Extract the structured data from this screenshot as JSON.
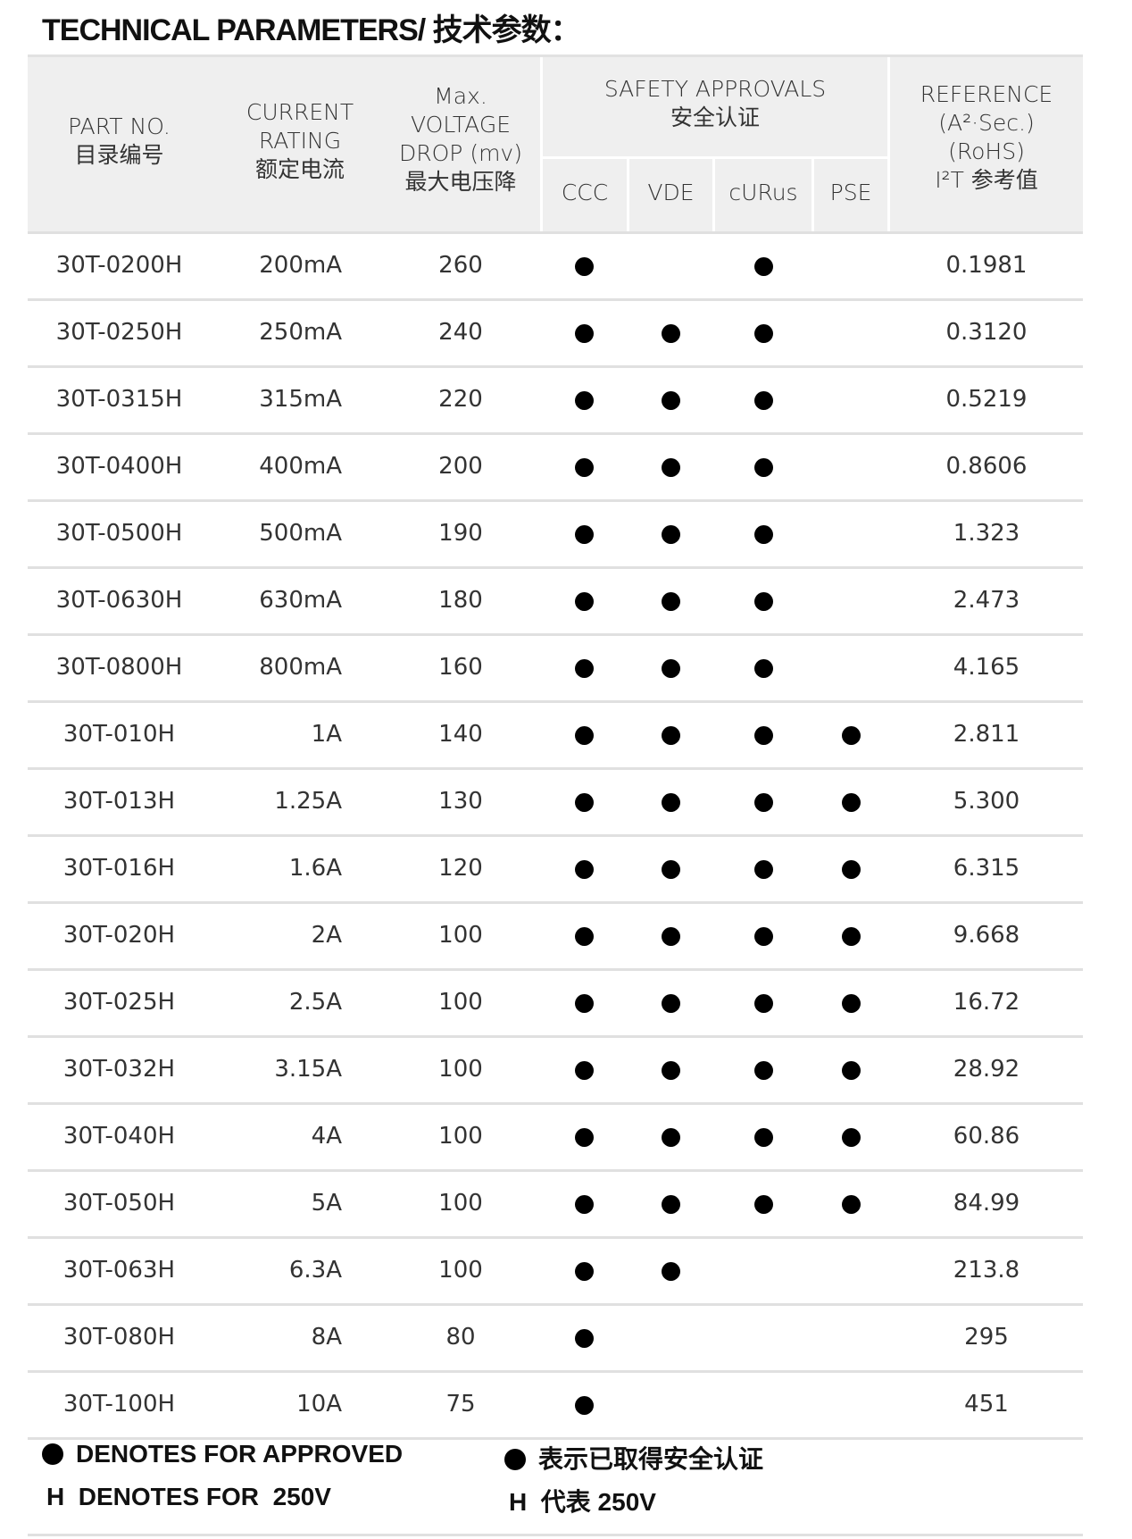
{
  "title": "TECHNICAL PARAMETERS/ 技术参数：",
  "header": {
    "part_no": [
      "PART  NO.",
      "目录编号"
    ],
    "current_rating": [
      "CURRENT",
      "RATING",
      "额定电流"
    ],
    "voltage_drop": [
      "Max.",
      "VOLTAGE",
      "DROP (mv)",
      "最大电压降"
    ],
    "safety_approvals": [
      "SAFETY APPROVALS",
      "安全认证"
    ],
    "approvals": [
      "CCC",
      "VDE",
      "cURus",
      "PSE"
    ],
    "reference": [
      "REFERENCE",
      "(A²·Sec.)",
      "(RoHS)",
      "I²T 参考值"
    ]
  },
  "rows": [
    {
      "part": "30T-0200H",
      "current": "200mA",
      "drop": "260",
      "ccc": true,
      "vde": false,
      "curus": true,
      "pse": false,
      "ref": "0.1981"
    },
    {
      "part": "30T-0250H",
      "current": "250mA",
      "drop": "240",
      "ccc": true,
      "vde": true,
      "curus": true,
      "pse": false,
      "ref": "0.3120"
    },
    {
      "part": "30T-0315H",
      "current": "315mA",
      "drop": "220",
      "ccc": true,
      "vde": true,
      "curus": true,
      "pse": false,
      "ref": "0.5219"
    },
    {
      "part": "30T-0400H",
      "current": "400mA",
      "drop": "200",
      "ccc": true,
      "vde": true,
      "curus": true,
      "pse": false,
      "ref": "0.8606"
    },
    {
      "part": "30T-0500H",
      "current": "500mA",
      "drop": "190",
      "ccc": true,
      "vde": true,
      "curus": true,
      "pse": false,
      "ref": "1.323"
    },
    {
      "part": "30T-0630H",
      "current": "630mA",
      "drop": "180",
      "ccc": true,
      "vde": true,
      "curus": true,
      "pse": false,
      "ref": "2.473"
    },
    {
      "part": "30T-0800H",
      "current": "800mA",
      "drop": "160",
      "ccc": true,
      "vde": true,
      "curus": true,
      "pse": false,
      "ref": "4.165"
    },
    {
      "part": "30T-010H",
      "current": "1A",
      "drop": "140",
      "ccc": true,
      "vde": true,
      "curus": true,
      "pse": true,
      "ref": "2.811"
    },
    {
      "part": "30T-013H",
      "current": "1.25A",
      "drop": "130",
      "ccc": true,
      "vde": true,
      "curus": true,
      "pse": true,
      "ref": "5.300"
    },
    {
      "part": "30T-016H",
      "current": "1.6A",
      "drop": "120",
      "ccc": true,
      "vde": true,
      "curus": true,
      "pse": true,
      "ref": "6.315"
    },
    {
      "part": "30T-020H",
      "current": "2A",
      "drop": "100",
      "ccc": true,
      "vde": true,
      "curus": true,
      "pse": true,
      "ref": "9.668"
    },
    {
      "part": "30T-025H",
      "current": "2.5A",
      "drop": "100",
      "ccc": true,
      "vde": true,
      "curus": true,
      "pse": true,
      "ref": "16.72"
    },
    {
      "part": "30T-032H",
      "current": "3.15A",
      "drop": "100",
      "ccc": true,
      "vde": true,
      "curus": true,
      "pse": true,
      "ref": "28.92"
    },
    {
      "part": "30T-040H",
      "current": "4A",
      "drop": "100",
      "ccc": true,
      "vde": true,
      "curus": true,
      "pse": true,
      "ref": "60.86"
    },
    {
      "part": "30T-050H",
      "current": "5A",
      "drop": "100",
      "ccc": true,
      "vde": true,
      "curus": true,
      "pse": true,
      "ref": "84.99"
    },
    {
      "part": "30T-063H",
      "current": "6.3A",
      "drop": "100",
      "ccc": true,
      "vde": true,
      "curus": false,
      "pse": false,
      "ref": "213.8"
    },
    {
      "part": "30T-080H",
      "current": "8A",
      "drop": "80",
      "ccc": true,
      "vde": false,
      "curus": false,
      "pse": false,
      "ref": "295"
    },
    {
      "part": "30T-100H",
      "current": "10A",
      "drop": "75",
      "ccc": true,
      "vde": false,
      "curus": false,
      "pse": false,
      "ref": "451"
    }
  ],
  "legend": {
    "approved_en": "DENOTES FOR APPROVED",
    "approved_cn": "表示已取得安全认证",
    "h_en": "H  DENOTES FOR  250V",
    "h_cn": "H  代表 250V"
  }
}
